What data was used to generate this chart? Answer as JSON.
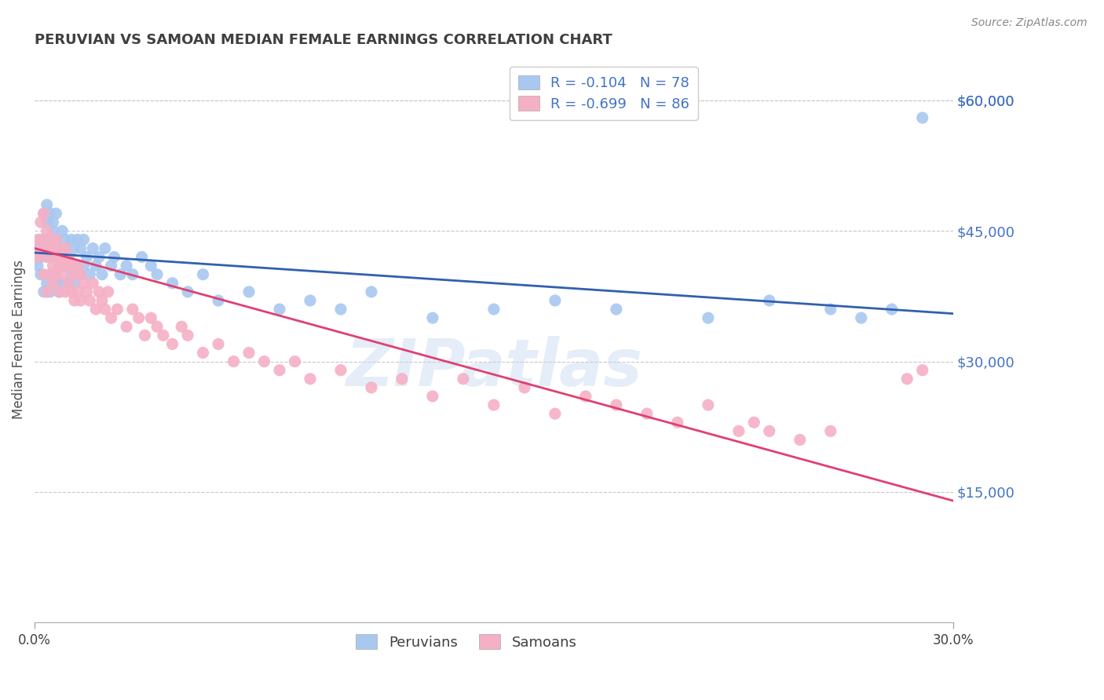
{
  "title": "PERUVIAN VS SAMOAN MEDIAN FEMALE EARNINGS CORRELATION CHART",
  "source": "Source: ZipAtlas.com",
  "ylabel": "Median Female Earnings",
  "xlim": [
    0.0,
    0.3
  ],
  "ylim": [
    0,
    65000
  ],
  "ytick_values": [
    15000,
    30000,
    45000,
    60000
  ],
  "ytick_labels": [
    "$15,000",
    "$30,000",
    "$45,000",
    "$60,000"
  ],
  "peruvian_color": "#A8C8F0",
  "samoan_color": "#F5B0C5",
  "peruvian_line_color": "#3060B0",
  "samoan_line_color": "#E04070",
  "peruvian_R": -0.104,
  "peruvian_N": 78,
  "samoan_R": -0.699,
  "samoan_N": 86,
  "background_color": "#FFFFFF",
  "grid_color": "#C8C8C8",
  "title_color": "#404040",
  "axis_label_color": "#4472C4",
  "legend_R_color": "#404040",
  "legend_N_color": "#4472C4",
  "peruvian_x": [
    0.001,
    0.001,
    0.002,
    0.002,
    0.002,
    0.003,
    0.003,
    0.003,
    0.004,
    0.004,
    0.004,
    0.005,
    0.005,
    0.005,
    0.005,
    0.006,
    0.006,
    0.006,
    0.006,
    0.007,
    0.007,
    0.007,
    0.007,
    0.008,
    0.008,
    0.008,
    0.009,
    0.009,
    0.009,
    0.01,
    0.01,
    0.01,
    0.011,
    0.011,
    0.012,
    0.012,
    0.013,
    0.013,
    0.014,
    0.014,
    0.015,
    0.015,
    0.016,
    0.016,
    0.017,
    0.018,
    0.019,
    0.02,
    0.021,
    0.022,
    0.023,
    0.025,
    0.026,
    0.028,
    0.03,
    0.032,
    0.035,
    0.038,
    0.04,
    0.045,
    0.05,
    0.055,
    0.06,
    0.07,
    0.08,
    0.09,
    0.1,
    0.11,
    0.13,
    0.15,
    0.17,
    0.19,
    0.22,
    0.24,
    0.26,
    0.27,
    0.28,
    0.29
  ],
  "peruvian_y": [
    43000,
    41000,
    44000,
    40000,
    42000,
    47000,
    43000,
    38000,
    48000,
    46000,
    39000,
    44000,
    42000,
    47000,
    38000,
    45000,
    43000,
    40000,
    46000,
    44000,
    42000,
    47000,
    39000,
    43000,
    41000,
    38000,
    45000,
    42000,
    39000,
    44000,
    41000,
    43000,
    42000,
    39000,
    44000,
    40000,
    43000,
    39000,
    44000,
    41000,
    43000,
    40000,
    44000,
    41000,
    42000,
    40000,
    43000,
    41000,
    42000,
    40000,
    43000,
    41000,
    42000,
    40000,
    41000,
    40000,
    42000,
    41000,
    40000,
    39000,
    38000,
    40000,
    37000,
    38000,
    36000,
    37000,
    36000,
    38000,
    35000,
    36000,
    37000,
    36000,
    35000,
    37000,
    36000,
    35000,
    36000,
    58000
  ],
  "samoan_x": [
    0.001,
    0.001,
    0.002,
    0.002,
    0.003,
    0.003,
    0.003,
    0.004,
    0.004,
    0.004,
    0.005,
    0.005,
    0.005,
    0.006,
    0.006,
    0.006,
    0.007,
    0.007,
    0.007,
    0.008,
    0.008,
    0.008,
    0.009,
    0.009,
    0.01,
    0.01,
    0.01,
    0.011,
    0.011,
    0.012,
    0.012,
    0.013,
    0.013,
    0.014,
    0.014,
    0.015,
    0.015,
    0.016,
    0.017,
    0.018,
    0.019,
    0.02,
    0.021,
    0.022,
    0.023,
    0.024,
    0.025,
    0.027,
    0.03,
    0.032,
    0.034,
    0.036,
    0.038,
    0.04,
    0.042,
    0.045,
    0.048,
    0.05,
    0.055,
    0.06,
    0.065,
    0.07,
    0.075,
    0.08,
    0.085,
    0.09,
    0.1,
    0.11,
    0.12,
    0.13,
    0.14,
    0.15,
    0.16,
    0.17,
    0.18,
    0.19,
    0.2,
    0.21,
    0.22,
    0.23,
    0.235,
    0.24,
    0.25,
    0.26,
    0.285,
    0.29
  ],
  "samoan_y": [
    44000,
    42000,
    46000,
    43000,
    47000,
    44000,
    40000,
    45000,
    42000,
    38000,
    43000,
    40000,
    44000,
    41000,
    43000,
    39000,
    42000,
    40000,
    44000,
    41000,
    43000,
    38000,
    42000,
    40000,
    43000,
    41000,
    38000,
    42000,
    39000,
    41000,
    38000,
    40000,
    37000,
    41000,
    38000,
    40000,
    37000,
    39000,
    38000,
    37000,
    39000,
    36000,
    38000,
    37000,
    36000,
    38000,
    35000,
    36000,
    34000,
    36000,
    35000,
    33000,
    35000,
    34000,
    33000,
    32000,
    34000,
    33000,
    31000,
    32000,
    30000,
    31000,
    30000,
    29000,
    30000,
    28000,
    29000,
    27000,
    28000,
    26000,
    28000,
    25000,
    27000,
    24000,
    26000,
    25000,
    24000,
    23000,
    25000,
    22000,
    23000,
    22000,
    21000,
    22000,
    28000,
    29000
  ]
}
